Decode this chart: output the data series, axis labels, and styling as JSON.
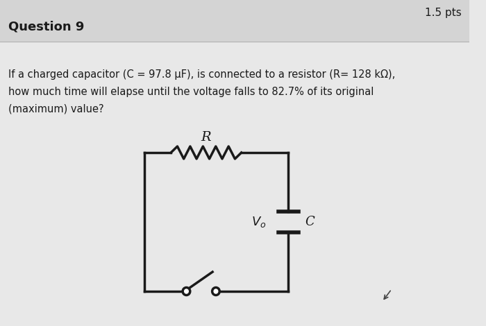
{
  "title": "Question 9",
  "pts": "1.5 pts",
  "question_text_line1": "If a charged capacitor (C = 97.8 μF), is connected to a resistor (R= 128 kΩ),",
  "question_text_line2": "how much time will elapse until the voltage falls to 82.7% of its original",
  "question_text_line3": "(maximum) value?",
  "bg_color": "#e8e8e8",
  "text_color": "#1a1a1a",
  "circuit_color": "#1a1a1a",
  "header_bg": "#d4d4d4",
  "header_line_color": "#b0b0b0"
}
